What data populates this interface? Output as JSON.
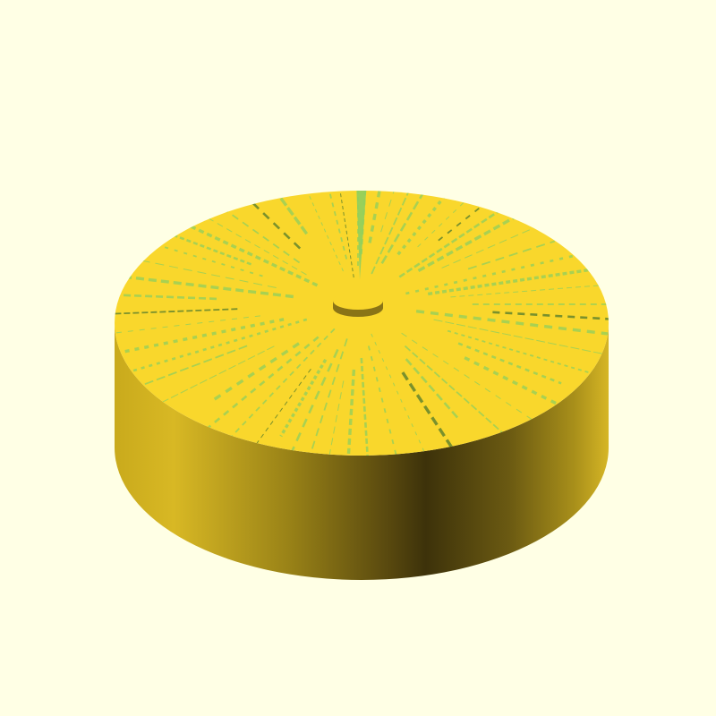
{
  "viewport": {
    "background": "#ffffe5"
  },
  "model": {
    "shape": "cylinder-disc-with-center-nub",
    "top_color": "#f9d72c",
    "side_light_color": "#f1d02a",
    "side_dark_color": "#3d320a",
    "artifact_color": "#8ecf5e",
    "artifact_dark_color": "#4f7a2c"
  }
}
